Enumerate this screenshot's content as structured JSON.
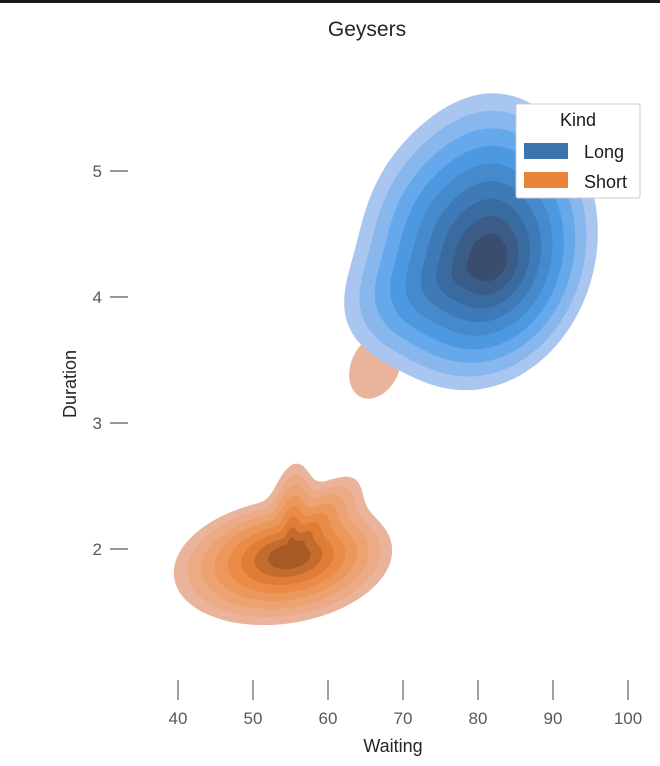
{
  "chart_data": {
    "type": "kde",
    "title": "Geysers",
    "xlabel": "Waiting",
    "ylabel": "Duration",
    "xlim": [
      40,
      100
    ],
    "ylim": [
      1.5,
      5.0
    ],
    "xticks": [
      40,
      50,
      60,
      70,
      80,
      90,
      100
    ],
    "yticks": [
      2,
      3,
      4,
      5
    ],
    "grid": false,
    "legend": {
      "title": "Kind",
      "placement": "top-right"
    },
    "series": [
      {
        "name": "Long",
        "color": "#3a75b0",
        "peak": {
          "x": 80,
          "y": 4.4
        },
        "approx_extent": {
          "x": [
            67,
            96
          ],
          "y": [
            3.0,
            5.25
          ]
        }
      },
      {
        "name": "Short",
        "color": "#e8833a",
        "peak": {
          "x": 54,
          "y": 1.9
        },
        "approx_extent": {
          "x": [
            40,
            69
          ],
          "y": [
            1.4,
            3.7
          ]
        }
      }
    ]
  }
}
